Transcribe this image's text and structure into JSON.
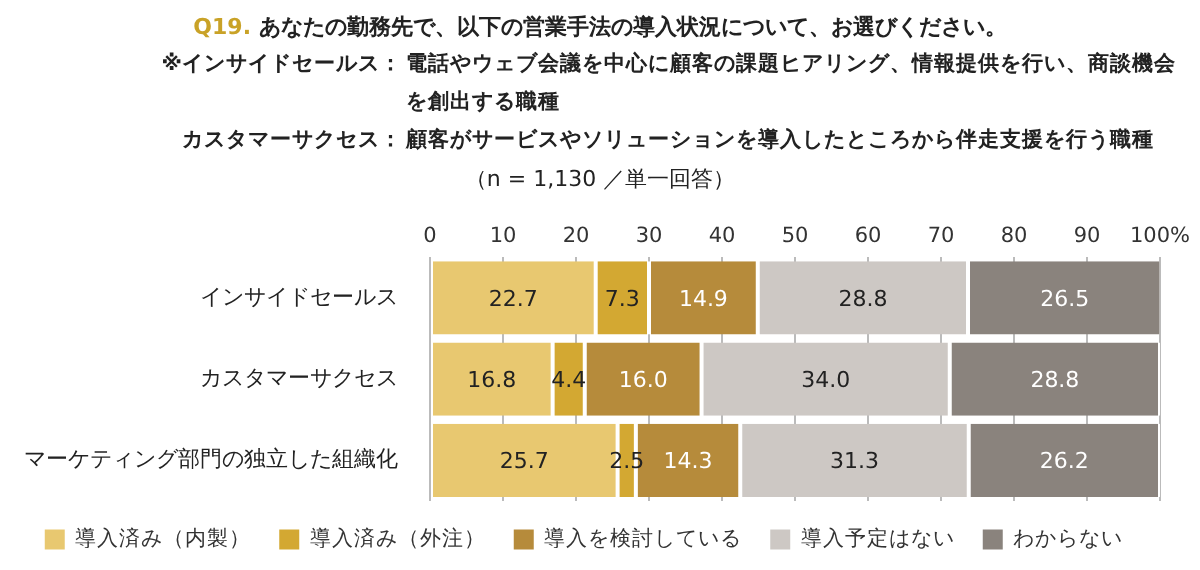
{
  "chart_data": {
    "type": "bar",
    "orientation": "horizontal",
    "stacked": true,
    "title": "Q19. あなたの勤務先で、以下の営業手法の導入状況について、お選びください。",
    "subtitle": "（n = 1,130 ／単一回答）",
    "annotations": [
      "※インサイドセールス：電話やウェブ会議を中心に顧客の課題ヒアリング、情報提供を行い、商談機会を創出する職種",
      "カスタマーサクセス：顧客がサービスやソリューションを導入したところから伴走支援を行う職種"
    ],
    "categories": [
      "インサイドセールス",
      "カスタマーサクセス",
      "マーケティング部門の独立した組織化"
    ],
    "series": [
      {
        "name": "導入済み（内製）",
        "color": "#e8c870",
        "values": [
          22.7,
          16.8,
          25.7
        ],
        "value_labels": [
          "22.7",
          "16.8",
          "25.7"
        ]
      },
      {
        "name": "導入済み（外注）",
        "color": "#d3a832",
        "values": [
          7.3,
          4.4,
          2.5
        ],
        "value_labels": [
          "7.3",
          "4.4",
          "2.5"
        ]
      },
      {
        "name": "導入を検討している",
        "color": "#b68b3b",
        "values": [
          14.9,
          16.0,
          14.3
        ],
        "value_labels": [
          "14.9",
          "16.0",
          "14.3"
        ]
      },
      {
        "name": "導入予定はない",
        "color": "#cdc8c4",
        "values": [
          28.8,
          34.0,
          31.3
        ],
        "value_labels": [
          "28.8",
          "34.0",
          "31.3"
        ]
      },
      {
        "name": "わからない",
        "color": "#8a837d",
        "values": [
          26.5,
          28.8,
          26.2
        ],
        "value_labels": [
          "26.5",
          "28.8",
          "26.2"
        ]
      }
    ],
    "xlim": [
      0,
      100
    ],
    "xticks": [
      0,
      10,
      20,
      30,
      40,
      50,
      60,
      70,
      80,
      90,
      {
        "value": 100,
        "label": "100%"
      }
    ],
    "grid": "x",
    "legend": "bottom"
  }
}
